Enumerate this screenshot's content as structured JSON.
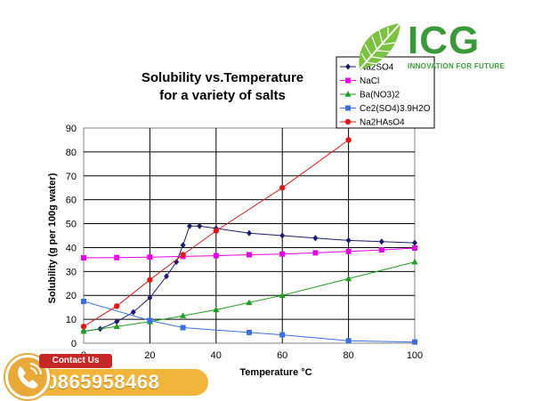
{
  "chart_data": {
    "type": "line",
    "title": [
      "Solubility vs.Temperature",
      "for a variety of salts"
    ],
    "xlabel": "Temperature °C",
    "ylabel": "Solubility (g per 100g water)",
    "xlim": [
      0,
      100
    ],
    "ylim": [
      0,
      90
    ],
    "xticks": [
      0,
      20,
      40,
      60,
      80,
      100
    ],
    "yticks": [
      0,
      10,
      20,
      30,
      40,
      50,
      60,
      70,
      80,
      90
    ],
    "grid": true,
    "legend_position": "top-right",
    "series": [
      {
        "name": "Na2SO4",
        "color": "#1c1c6b",
        "marker": "diamond",
        "x": [
          0,
          5,
          10,
          15,
          20,
          25,
          28,
          30,
          32,
          35,
          40,
          50,
          60,
          70,
          80,
          90,
          100
        ],
        "y": [
          5,
          6,
          9,
          13,
          19,
          28,
          34,
          41,
          49,
          49,
          48,
          46,
          45,
          44,
          43,
          42.5,
          42
        ]
      },
      {
        "name": "NaCl",
        "color": "#e600e6",
        "marker": "square",
        "x": [
          0,
          10,
          20,
          30,
          40,
          50,
          60,
          70,
          80,
          90,
          100
        ],
        "y": [
          35.7,
          35.8,
          36,
          36.3,
          36.6,
          37,
          37.3,
          37.8,
          38.4,
          39,
          39.8
        ]
      },
      {
        "name": "Ba(NO3)2",
        "color": "#1f9e1f",
        "marker": "triangle",
        "x": [
          0,
          10,
          20,
          30,
          40,
          50,
          60,
          80,
          100
        ],
        "y": [
          5,
          7,
          9,
          11.5,
          14,
          17,
          20,
          27,
          34
        ]
      },
      {
        "name": "Ce2(SO4)3.9H2O",
        "color": "#3a6fe0",
        "marker": "square",
        "x": [
          0,
          20,
          30,
          50,
          60,
          80,
          100
        ],
        "y": [
          17.5,
          9.5,
          6.5,
          4.5,
          3.5,
          1,
          0.5
        ]
      },
      {
        "name": "Na2HAsO4",
        "color": "#dd1a1a",
        "marker": "circle",
        "x": [
          0,
          10,
          20,
          30,
          40,
          60,
          80
        ],
        "y": [
          7,
          15.5,
          26.5,
          37,
          47,
          65,
          85
        ]
      }
    ]
  },
  "logo": {
    "text": "ICG",
    "tagline": "INNOVATION FOR FUTURE",
    "icon": "leaf-icon",
    "color": "#3a9a3a"
  },
  "contact": {
    "label": "Contact Us",
    "phone": "0865958468",
    "icon": "phone-icon"
  }
}
